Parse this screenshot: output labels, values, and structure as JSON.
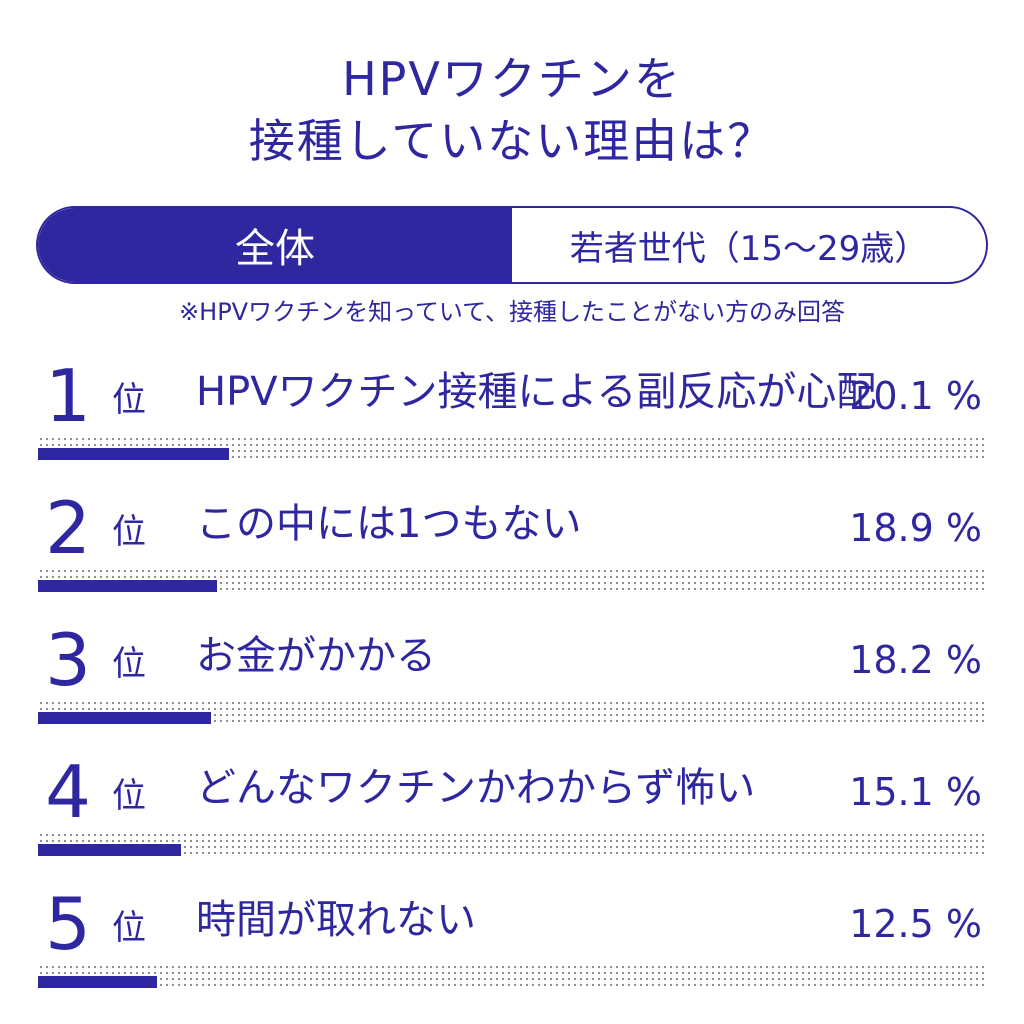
{
  "title": {
    "line1": "HPVワクチンを",
    "line2": "接種していない理由は？"
  },
  "tabs": [
    {
      "label": "全体",
      "active": true
    },
    {
      "label": "若者世代（15〜29歳）",
      "active": false
    }
  ],
  "note": "※HPVワクチンを知っていて、接種したことがない方のみ回答",
  "rank_suffix": "位",
  "colors": {
    "accent": "#2e27a0",
    "dots": "#888888",
    "background": "#ffffff"
  },
  "chart_data": {
    "type": "bar",
    "categories": [
      "HPVワクチン接種による副反応が心配",
      "この中には1つもない",
      "お金がかかる",
      "どんなワクチンかわからず怖い",
      "時間が取れない"
    ],
    "values": [
      20.1,
      18.9,
      18.2,
      15.1,
      12.5
    ],
    "ylim": [
      0,
      100
    ],
    "unit": "%",
    "ranks": [
      "1",
      "2",
      "3",
      "4",
      "5"
    ],
    "value_labels": [
      "20.1 %",
      "18.9 %",
      "18.2 %",
      "15.1 %",
      "12.5 %"
    ]
  }
}
